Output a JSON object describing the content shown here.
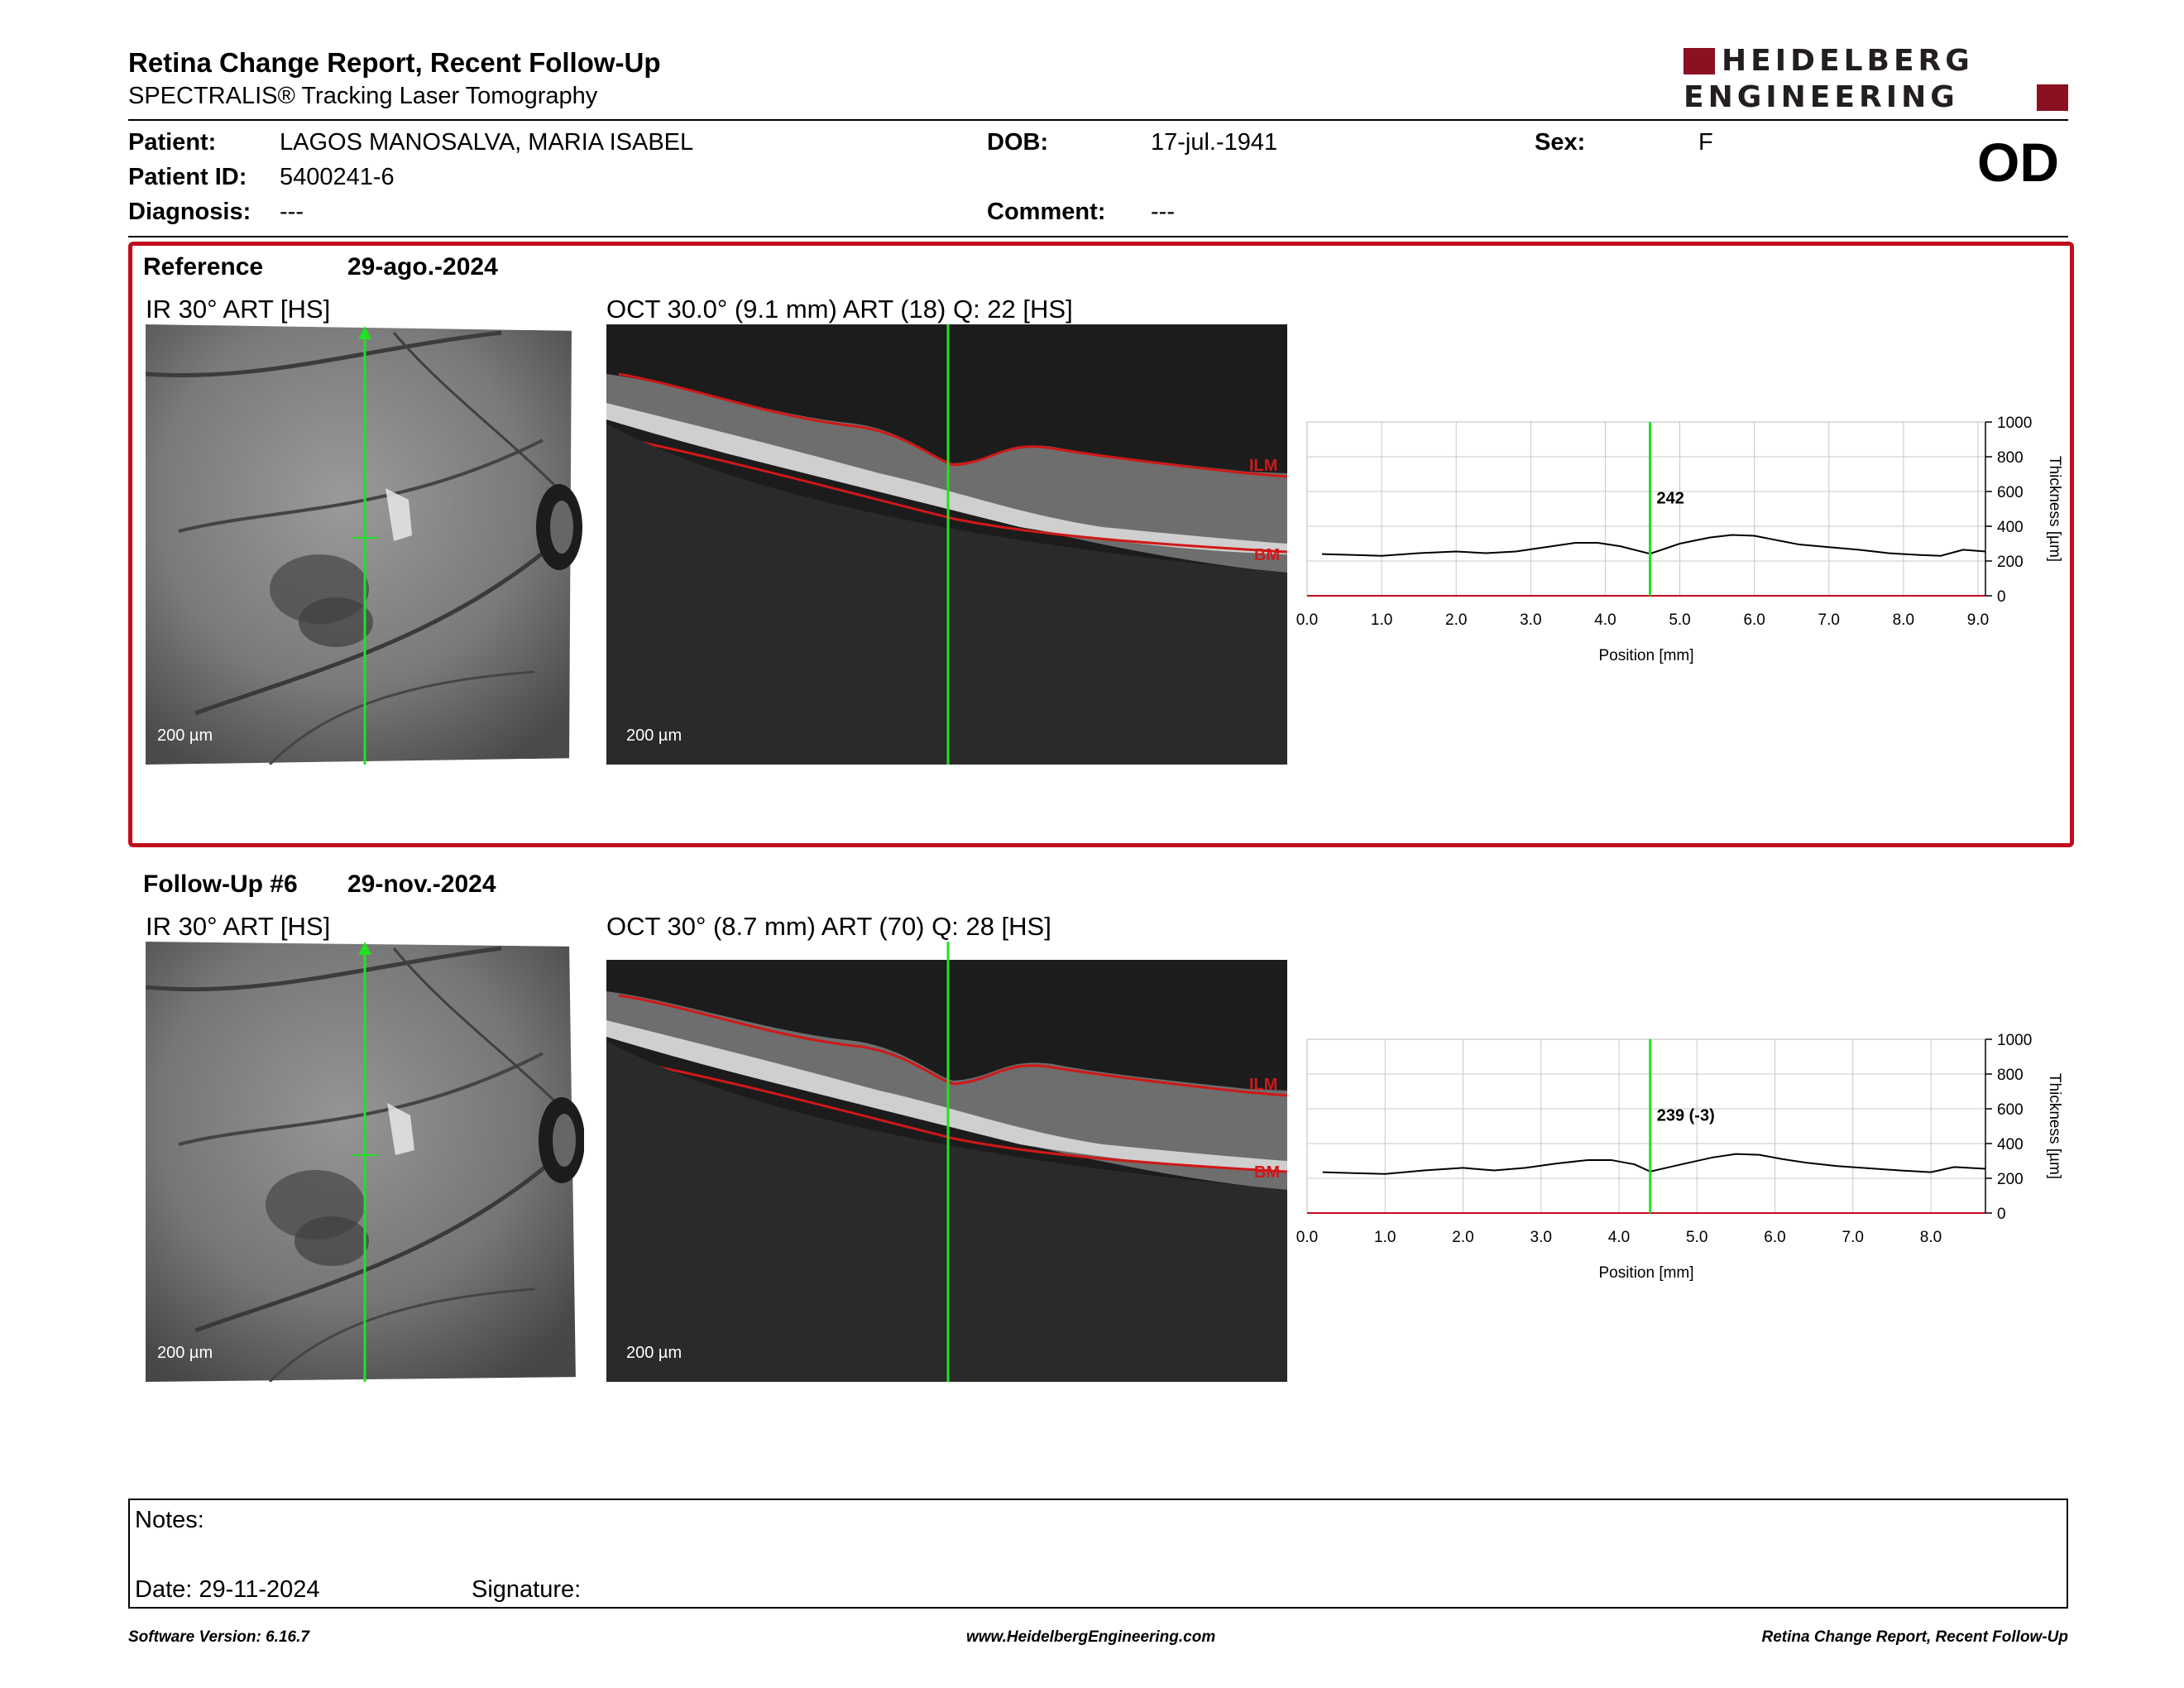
{
  "header": {
    "title": "Retina Change Report, Recent Follow-Up",
    "subtitle": "SPECTRALIS® Tracking Laser Tomography",
    "logo_line1": "HEIDELBERG",
    "logo_line2": "ENGINEERING",
    "eye": "OD"
  },
  "patient": {
    "patient_label": "Patient:",
    "patient_value": "LAGOS MANOSALVA, MARIA ISABEL",
    "id_label": "Patient ID:",
    "id_value": "5400241-6",
    "diagnosis_label": "Diagnosis:",
    "diagnosis_value": "---",
    "dob_label": "DOB:",
    "dob_value": "17-jul.-1941",
    "comment_label": "Comment:",
    "comment_value": "---",
    "sex_label": "Sex:",
    "sex_value": "F"
  },
  "reference": {
    "label": "Reference",
    "date": "29-ago.-2024",
    "ir_title": "IR 30° ART [HS]",
    "oct_title": "OCT 30.0° (9.1 mm) ART (18) Q: 22 [HS]",
    "scale_ir": "200 µm",
    "scale_oct": "200 µm",
    "ilm_label": "ILM",
    "bm_label": "BM"
  },
  "followup": {
    "label": "Follow-Up #6",
    "date": "29-nov.-2024",
    "ir_title": "IR 30° ART [HS]",
    "oct_title": "OCT 30° (8.7 mm) ART (70) Q: 28 [HS]",
    "scale_ir": "200 µm",
    "scale_oct": "200 µm",
    "ilm_label": "ILM",
    "bm_label": "BM"
  },
  "chart_data": [
    {
      "type": "line",
      "xlabel": "Position [mm]",
      "ylabel": "Thickness [µm]",
      "xlim": [
        0,
        9.1
      ],
      "ylim": [
        0,
        1000
      ],
      "x_ticks": [
        "0.0",
        "1.0",
        "2.0",
        "3.0",
        "4.0",
        "5.0",
        "6.0",
        "7.0",
        "8.0",
        "9.0"
      ],
      "y_ticks": [
        "0",
        "200",
        "400",
        "600",
        "800",
        "1000"
      ],
      "marker_x": 4.6,
      "marker_label": "242",
      "grid": true,
      "series": [
        {
          "x": [
            0.2,
            0.6,
            1.0,
            1.5,
            2.0,
            2.4,
            2.8,
            3.2,
            3.6,
            3.9,
            4.2,
            4.6,
            5.0,
            5.4,
            5.7,
            6.0,
            6.3,
            6.6,
            7.0,
            7.4,
            7.8,
            8.2,
            8.5,
            8.8,
            9.1
          ],
          "y": [
            240,
            235,
            230,
            245,
            255,
            245,
            255,
            280,
            305,
            305,
            285,
            242,
            300,
            335,
            350,
            345,
            320,
            295,
            280,
            265,
            245,
            235,
            230,
            265,
            255
          ]
        }
      ]
    },
    {
      "type": "line",
      "xlabel": "Position [mm]",
      "ylabel": "Thickness [µm]",
      "xlim": [
        0,
        8.7
      ],
      "ylim": [
        0,
        1000
      ],
      "x_ticks": [
        "0.0",
        "1.0",
        "2.0",
        "3.0",
        "4.0",
        "5.0",
        "6.0",
        "7.0",
        "8.0"
      ],
      "y_ticks": [
        "0",
        "200",
        "400",
        "600",
        "800",
        "1000"
      ],
      "marker_x": 4.4,
      "marker_label": "239 (-3)",
      "grid": true,
      "series": [
        {
          "x": [
            0.2,
            0.6,
            1.0,
            1.5,
            2.0,
            2.4,
            2.8,
            3.2,
            3.6,
            3.9,
            4.2,
            4.4,
            4.8,
            5.2,
            5.5,
            5.8,
            6.1,
            6.4,
            6.8,
            7.2,
            7.6,
            8.0,
            8.3,
            8.7
          ],
          "y": [
            235,
            230,
            225,
            245,
            260,
            245,
            260,
            285,
            305,
            305,
            280,
            239,
            280,
            320,
            340,
            335,
            310,
            290,
            270,
            258,
            245,
            235,
            265,
            255
          ]
        }
      ]
    }
  ],
  "notes": {
    "notes_label": "Notes:",
    "date_label": "Date: 29-11-2024",
    "signature_label": "Signature:"
  },
  "footer": {
    "software": "Software Version: 6.16.7",
    "website": "www.HeidelbergEngineering.com",
    "report_name": "Retina Change Report, Recent Follow-Up"
  }
}
